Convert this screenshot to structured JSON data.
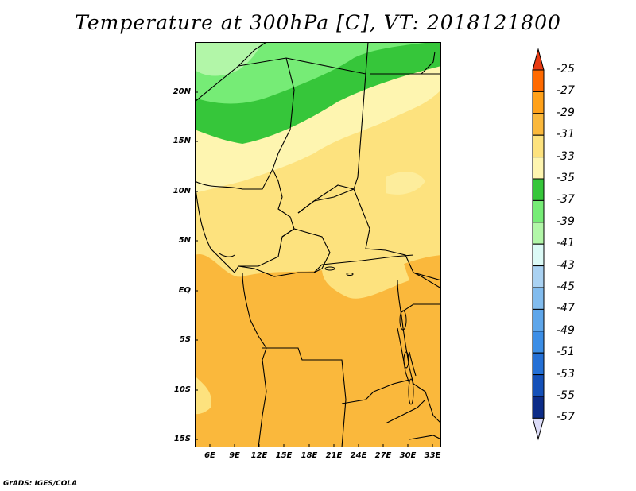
{
  "title": "Temperature at 300hPa [C], VT: 2018121800",
  "credit": "GrADS: IGES/COLA",
  "lat_ticks": [
    "20N",
    "15N",
    "10N",
    "5N",
    "EQ",
    "5S",
    "10S",
    "15S"
  ],
  "lon_ticks": [
    "6E",
    "9E",
    "12E",
    "15E",
    "18E",
    "21E",
    "24E",
    "27E",
    "30E",
    "33E"
  ],
  "colorbar": {
    "labels": [
      "-25",
      "-27",
      "-29",
      "-31",
      "-33",
      "-35",
      "-37",
      "-39",
      "-41",
      "-43",
      "-45",
      "-47",
      "-49",
      "-51",
      "-53",
      "-55",
      "-57"
    ],
    "colors": [
      "#e83a12",
      "#ff6a00",
      "#ffa11a",
      "#fab83c",
      "#fde27e",
      "#fef5b0",
      "#36c63a",
      "#76ec76",
      "#b2f6a8",
      "#dcfaf6",
      "#aad2f2",
      "#82bcee",
      "#5ea6ea",
      "#3c8ee6",
      "#2470d6",
      "#1450b8",
      "#0c2c88",
      "#dcdcf8"
    ]
  },
  "colors": {
    "light_yellow": "#fef5b0",
    "yellow": "#fde27e",
    "orange": "#fab83c",
    "green_dark": "#36c63a",
    "green_mid": "#76ec76",
    "green_light": "#b2f6a8"
  }
}
